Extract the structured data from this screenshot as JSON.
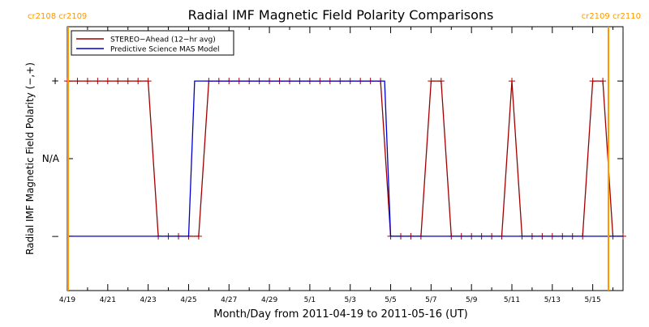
{
  "chart_data": {
    "type": "line",
    "title": "Radial IMF Magnetic Field Polarity Comparisons",
    "xlabel": "Month/Day from 2011-04-19 to 2011-05-16 (UT)",
    "ylabel": "Radial IMF Magnetic Field Polarity (−,+)",
    "xlim": [
      0,
      27.5
    ],
    "ylim": [
      -1.7,
      1.7
    ],
    "x_tick_labels": [
      "4/19",
      "4/21",
      "4/23",
      "4/25",
      "4/27",
      "4/29",
      "5/1",
      "5/3",
      "5/5",
      "5/7",
      "5/9",
      "5/11",
      "5/13",
      "5/15"
    ],
    "x_tick_positions": [
      0,
      2,
      4,
      6,
      8,
      10,
      12,
      14,
      16,
      18,
      20,
      22,
      24,
      26
    ],
    "y_ticks": [
      {
        "value": 1,
        "label": "+"
      },
      {
        "value": 0,
        "label": "N/A"
      },
      {
        "value": -1,
        "label": "−"
      }
    ],
    "legend": {
      "placement": "top-left",
      "entries": [
        {
          "label": "STEREO−Ahead (12−hr avg)",
          "color": "#a00000"
        },
        {
          "label": "Predictive Science MAS Model",
          "color": "#0000cc"
        }
      ]
    },
    "carrington_rotation_labels": [
      {
        "x": 0,
        "text": "cr2108 cr2109",
        "side": "left"
      },
      {
        "x": 27.5,
        "text": "cr2109 cr2110",
        "side": "right"
      }
    ],
    "carrington_color": "#ff9900",
    "series": [
      {
        "name": "STEREO−Ahead (12−hr avg)",
        "color": "#a00000",
        "markers": true,
        "x": [
          0,
          0.5,
          1,
          1.5,
          2,
          2.5,
          3,
          3.5,
          4,
          4.5,
          5,
          5.5,
          6,
          6.5,
          7,
          7.5,
          8,
          8.5,
          9,
          9.5,
          10,
          10.5,
          11,
          11.5,
          12,
          12.5,
          13,
          13.5,
          14,
          14.5,
          15,
          15.5,
          16,
          16.5,
          17,
          17.5,
          18,
          18.5,
          19,
          19.5,
          20,
          20.5,
          21,
          21.5,
          22,
          22.5,
          23,
          23.5,
          24,
          24.5,
          25,
          25.5,
          26,
          26.5,
          27,
          27.5
        ],
        "y": [
          1,
          1,
          1,
          1,
          1,
          1,
          1,
          1,
          1,
          -1,
          -1,
          -1,
          -1,
          -1,
          1,
          1,
          1,
          1,
          1,
          1,
          1,
          1,
          1,
          1,
          1,
          1,
          1,
          1,
          1,
          1,
          1,
          1,
          -1,
          -1,
          -1,
          -1,
          1,
          1,
          -1,
          -1,
          -1,
          -1,
          -1,
          -1,
          1,
          -1,
          -1,
          -1,
          -1,
          -1,
          -1,
          -1,
          1,
          1,
          -1,
          -1
        ]
      },
      {
        "name": "Predictive Science MAS Model",
        "color": "#0000cc",
        "markers": false,
        "x": [
          0,
          6.0,
          6.3,
          15.7,
          16.0,
          27.5
        ],
        "y": [
          -1,
          -1,
          1,
          1,
          -1,
          -1
        ]
      }
    ]
  }
}
